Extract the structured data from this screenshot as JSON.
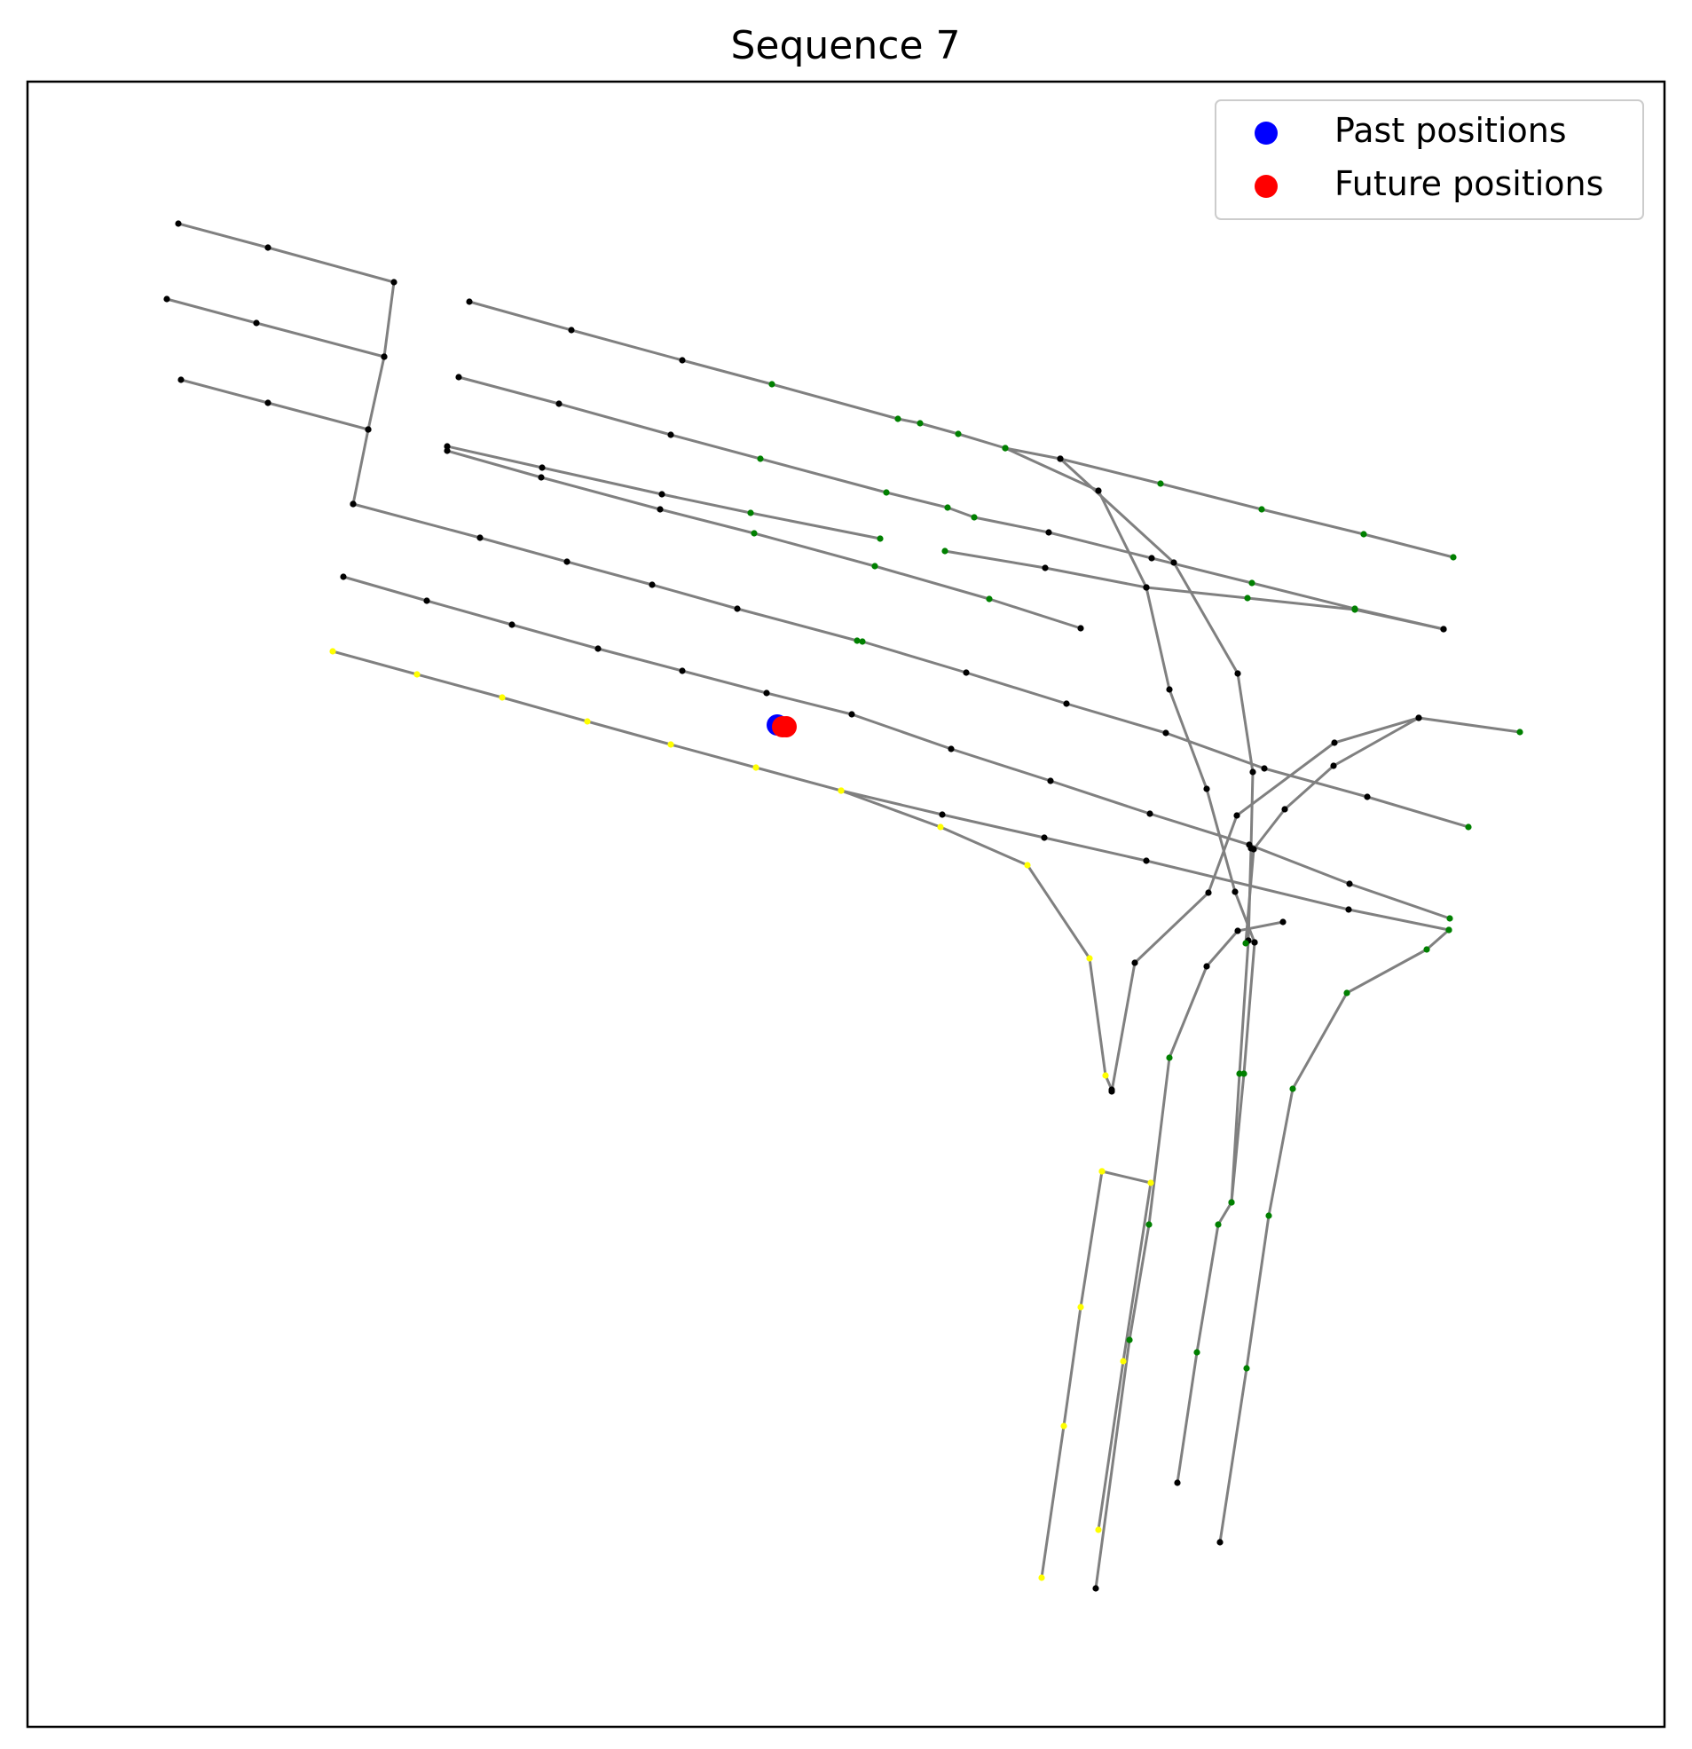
{
  "chart_data": {
    "type": "scatter",
    "title": "Sequence 7",
    "xlabel": "",
    "ylabel": "",
    "axis_ticks": false,
    "grid": false,
    "legend_position": "top-right",
    "colors": {
      "lane_line": "#808080",
      "lane_node_default": "#000000",
      "lane_node_green": "#008000",
      "lane_node_yellow": "#ffff00",
      "past": "#0000ff",
      "future": "#ff0000"
    },
    "legend": [
      {
        "label": "Past positions",
        "color": "#0000ff"
      },
      {
        "label": "Future positions",
        "color": "#ff0000"
      }
    ],
    "past_positions": [
      [
        876,
        817
      ]
    ],
    "future_positions": [
      [
        882,
        819
      ],
      [
        886,
        819
      ]
    ],
    "lanes": [
      {
        "points": [
          [
            201,
            252
          ],
          [
            302,
            279
          ],
          [
            444,
            318
          ],
          [
            433,
            402
          ],
          [
            415,
            484
          ],
          [
            398,
            568
          ]
        ],
        "colors": [
          "k",
          "k",
          "k",
          "k",
          "k",
          "k"
        ]
      },
      {
        "points": [
          [
            188,
            337
          ],
          [
            289,
            364
          ],
          [
            433,
            402
          ]
        ],
        "colors": [
          "k",
          "k",
          "k"
        ]
      },
      {
        "points": [
          [
            204,
            428
          ],
          [
            302,
            454
          ],
          [
            415,
            484
          ]
        ],
        "colors": [
          "k",
          "k",
          "k"
        ]
      },
      {
        "points": [
          [
            529,
            340
          ],
          [
            644,
            372
          ],
          [
            769,
            406
          ],
          [
            870,
            433
          ],
          [
            1012,
            472
          ],
          [
            1037,
            477
          ],
          [
            1080,
            489
          ],
          [
            1133,
            505
          ],
          [
            1195,
            517
          ],
          [
            1308,
            545
          ],
          [
            1422,
            574
          ],
          [
            1537,
            602
          ],
          [
            1638,
            628
          ]
        ],
        "colors": [
          "k",
          "k",
          "k",
          "g",
          "g",
          "g",
          "g",
          "g",
          "k",
          "g",
          "g",
          "g",
          "g"
        ]
      },
      {
        "points": [
          [
            517,
            425
          ],
          [
            630,
            455
          ],
          [
            756,
            490
          ],
          [
            857,
            517
          ],
          [
            999,
            555
          ],
          [
            1068,
            572
          ],
          [
            1098,
            583
          ],
          [
            1182,
            600
          ],
          [
            1298,
            629
          ],
          [
            1411,
            657
          ],
          [
            1527,
            686
          ],
          [
            1627,
            709
          ]
        ],
        "colors": [
          "k",
          "k",
          "k",
          "g",
          "g",
          "g",
          "g",
          "k",
          "k",
          "g",
          "g",
          "k"
        ]
      },
      {
        "points": [
          [
            504,
            503
          ],
          [
            611,
            527
          ],
          [
            746,
            557
          ],
          [
            846,
            578
          ],
          [
            992,
            607
          ]
        ],
        "colors": [
          "k",
          "k",
          "k",
          "g",
          "g"
        ]
      },
      {
        "points": [
          [
            504,
            508
          ],
          [
            610,
            538
          ],
          [
            744,
            574
          ],
          [
            850,
            601
          ],
          [
            986,
            638
          ],
          [
            1115,
            675
          ],
          [
            1218,
            708
          ]
        ],
        "colors": [
          "k",
          "k",
          "k",
          "g",
          "g",
          "g",
          "k"
        ]
      },
      {
        "points": [
          [
            398,
            568
          ],
          [
            541,
            606
          ],
          [
            639,
            633
          ],
          [
            735,
            659
          ],
          [
            831,
            686
          ],
          [
            966,
            722
          ],
          [
            972,
            723
          ],
          [
            1089,
            758
          ],
          [
            1202,
            793
          ],
          [
            1314,
            826
          ],
          [
            1425,
            866
          ],
          [
            1541,
            898
          ],
          [
            1655,
            932
          ]
        ],
        "colors": [
          "k",
          "k",
          "k",
          "k",
          "k",
          "g",
          "g",
          "k",
          "k",
          "k",
          "k",
          "k",
          "g"
        ]
      },
      {
        "points": [
          [
            387,
            650
          ],
          [
            481,
            677
          ],
          [
            577,
            704
          ],
          [
            674,
            731
          ],
          [
            769,
            756
          ],
          [
            864,
            781
          ],
          [
            960,
            805
          ],
          [
            1072,
            844
          ],
          [
            1184,
            880
          ],
          [
            1296,
            917
          ],
          [
            1408,
            952
          ],
          [
            1521,
            996
          ],
          [
            1634,
            1035
          ]
        ],
        "colors": [
          "k",
          "k",
          "k",
          "k",
          "k",
          "k",
          "k",
          "k",
          "k",
          "k",
          "k",
          "k",
          "g"
        ]
      },
      {
        "points": [
          [
            375,
            734
          ],
          [
            470,
            760
          ],
          [
            566,
            786
          ],
          [
            662,
            813
          ],
          [
            756,
            839
          ],
          [
            852,
            865
          ],
          [
            948,
            891
          ],
          [
            1062,
            918
          ],
          [
            1177,
            944
          ],
          [
            1292,
            970
          ],
          [
            1520,
            1025
          ],
          [
            1633,
            1048
          ]
        ],
        "colors": [
          "y",
          "y",
          "y",
          "y",
          "y",
          "y",
          "y",
          "k",
          "k",
          "k",
          "k",
          "g"
        ]
      },
      {
        "points": [
          [
            948,
            891
          ],
          [
            1060,
            932
          ],
          [
            1158,
            975
          ],
          [
            1228,
            1080
          ],
          [
            1246,
            1212
          ],
          [
            1253,
            1228
          ]
        ],
        "colors": [
          "y",
          "y",
          "y",
          "y",
          "y",
          "k"
        ]
      },
      {
        "points": [
          [
            1065,
            621
          ],
          [
            1178,
            640
          ],
          [
            1292,
            662
          ],
          [
            1406,
            674
          ],
          [
            1527,
            687
          ],
          [
            1627,
            709
          ]
        ],
        "colors": [
          "g",
          "k",
          "k",
          "g",
          "g",
          "k"
        ]
      },
      {
        "points": [
          [
            1133,
            505
          ],
          [
            1238,
            553
          ],
          [
            1292,
            662
          ],
          [
            1318,
            777
          ],
          [
            1360,
            889
          ],
          [
            1392,
            1005
          ],
          [
            1414,
            1062
          ]
        ],
        "colors": [
          "g",
          "k",
          "k",
          "k",
          "k",
          "k",
          "k"
        ]
      },
      {
        "points": [
          [
            1195,
            517
          ],
          [
            1323,
            634
          ],
          [
            1395,
            759
          ],
          [
            1412,
            870
          ],
          [
            1410,
            956
          ],
          [
            1407,
            1060
          ]
        ],
        "colors": [
          "k",
          "k",
          "k",
          "k",
          "k",
          "k"
        ]
      },
      {
        "points": [
          [
            1414,
            1062
          ],
          [
            1402,
            1210
          ],
          [
            1388,
            1355
          ],
          [
            1373,
            1380
          ],
          [
            1349,
            1524
          ],
          [
            1327,
            1671
          ]
        ],
        "colors": [
          "k",
          "g",
          "g",
          "g",
          "g",
          "k"
        ]
      },
      {
        "points": [
          [
            1407,
            1060
          ],
          [
            1397,
            1210
          ],
          [
            1388,
            1355
          ]
        ],
        "colors": [
          "k",
          "g",
          "g"
        ]
      },
      {
        "points": [
          [
            1713,
            825
          ],
          [
            1599,
            809
          ],
          [
            1503,
            863
          ],
          [
            1448,
            912
          ],
          [
            1413,
            957
          ],
          [
            1404,
            1063
          ]
        ],
        "colors": [
          "g",
          "k",
          "k",
          "k",
          "k",
          "g"
        ]
      },
      {
        "points": [
          [
            1599,
            809
          ],
          [
            1504,
            837
          ],
          [
            1394,
            919
          ],
          [
            1362,
            1006
          ],
          [
            1279,
            1085
          ],
          [
            1253,
            1230
          ]
        ],
        "colors": [
          "k",
          "k",
          "k",
          "k",
          "k",
          "k"
        ]
      },
      {
        "points": [
          [
            1633,
            1048
          ],
          [
            1608,
            1070
          ],
          [
            1518,
            1119
          ],
          [
            1457,
            1227
          ],
          [
            1430,
            1370
          ],
          [
            1405,
            1542
          ],
          [
            1375,
            1738
          ]
        ],
        "colors": [
          "g",
          "g",
          "g",
          "g",
          "g",
          "g",
          "k"
        ]
      },
      {
        "points": [
          [
            1446,
            1039
          ],
          [
            1395,
            1049
          ],
          [
            1360,
            1089
          ],
          [
            1318,
            1192
          ],
          [
            1295,
            1380
          ],
          [
            1273,
            1510
          ],
          [
            1235,
            1790
          ]
        ],
        "colors": [
          "k",
          "k",
          "k",
          "g",
          "g",
          "g",
          "k"
        ]
      },
      {
        "points": [
          [
            1242,
            1320
          ],
          [
            1297,
            1333
          ],
          [
            1266,
            1534
          ],
          [
            1238,
            1724
          ]
        ],
        "colors": [
          "y",
          "y",
          "y",
          "y"
        ]
      },
      {
        "points": [
          [
            1242,
            1320
          ],
          [
            1218,
            1473
          ],
          [
            1199,
            1607
          ],
          [
            1174,
            1778
          ]
        ],
        "colors": [
          "y",
          "y",
          "y",
          "y"
        ]
      }
    ]
  }
}
